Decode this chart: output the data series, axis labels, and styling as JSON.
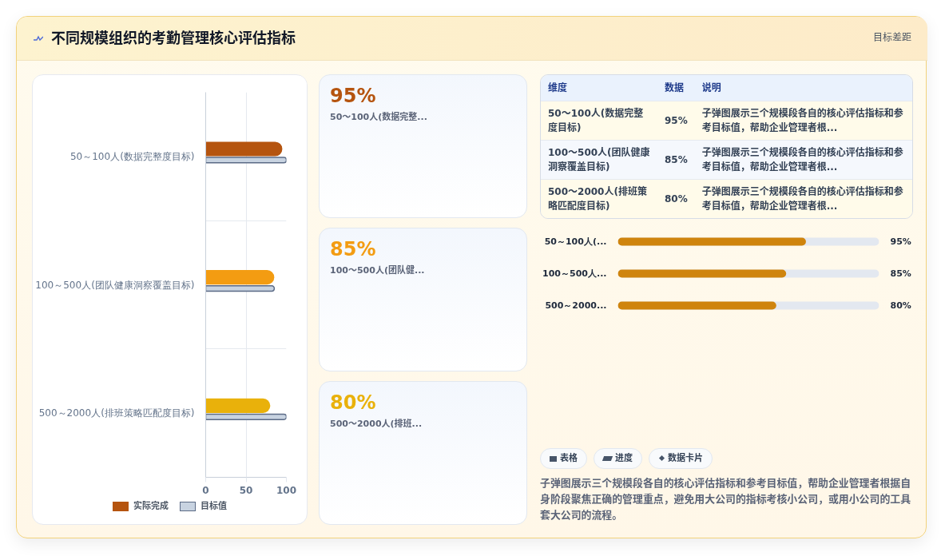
{
  "chart_data": [
    {
      "type": "bar",
      "orientation": "horizontal",
      "title": "不同规模组织的考勤管理核心评估指标",
      "categories": [
        "50～100人(数据完整度目标)",
        "100～500人(团队健康洞察覆盖目标)",
        "500～2000人(排班策略匹配度目标)"
      ],
      "series": [
        {
          "name": "实际完成",
          "colors": [
            "#b5540f",
            "#f39c12",
            "#e9b10b"
          ],
          "values": [
            95,
            85,
            80
          ]
        },
        {
          "name": "目标值",
          "color": "#c8d3e1",
          "values": [
            100,
            85,
            100
          ]
        }
      ],
      "xlim": [
        0,
        100
      ],
      "xticks": [
        0,
        50,
        100
      ],
      "grid": true,
      "legend": "bottom"
    },
    {
      "type": "other",
      "categories": [
        "50～100人(数据完整...",
        "100～500人(团队健...",
        "500～2000人(排班..."
      ],
      "value_labels": [
        "95%",
        "85%",
        "80%"
      ]
    },
    {
      "type": "other",
      "subtitle": "目标差距",
      "categories": [
        "维度",
        "数据",
        "说明"
      ],
      "cell_labels": [
        [
          "50～100人(数据完整度目标)",
          "95%",
          "子弹图展示三个规模段各自的核心评估指标和参考目标值，帮助企业管理者根..."
        ],
        [
          "100～500人(团队健康洞察覆盖目标)",
          "85%",
          "子弹图展示三个规模段各自的核心评估指标和参考目标值，帮助企业管理者根..."
        ],
        [
          "500～2000人(排班策略匹配度目标)",
          "80%",
          "子弹图展示三个规模段各自的核心评估指标和参考目标值，帮助企业管理者根..."
        ]
      ]
    },
    {
      "type": "bar",
      "orientation": "horizontal",
      "categories": [
        "50～100人(...",
        "100～500人...",
        "500～2000..."
      ],
      "values": [
        95,
        85,
        80
      ],
      "value_labels": [
        "95%",
        "85%",
        "80%"
      ],
      "color": "#cf840d"
    },
    {
      "type": "other",
      "categories": [
        "表格",
        "进度",
        "数据卡片"
      ],
      "annotations": [
        "子弹图展示三个规模段各自的核心评估指标和参考目标值，帮助企业管理者根据自身阶段聚焦正确的管理重点，避免用大公司的指标考核小公司，或用小公司的工具套大公司的流程。"
      ]
    }
  ]
}
